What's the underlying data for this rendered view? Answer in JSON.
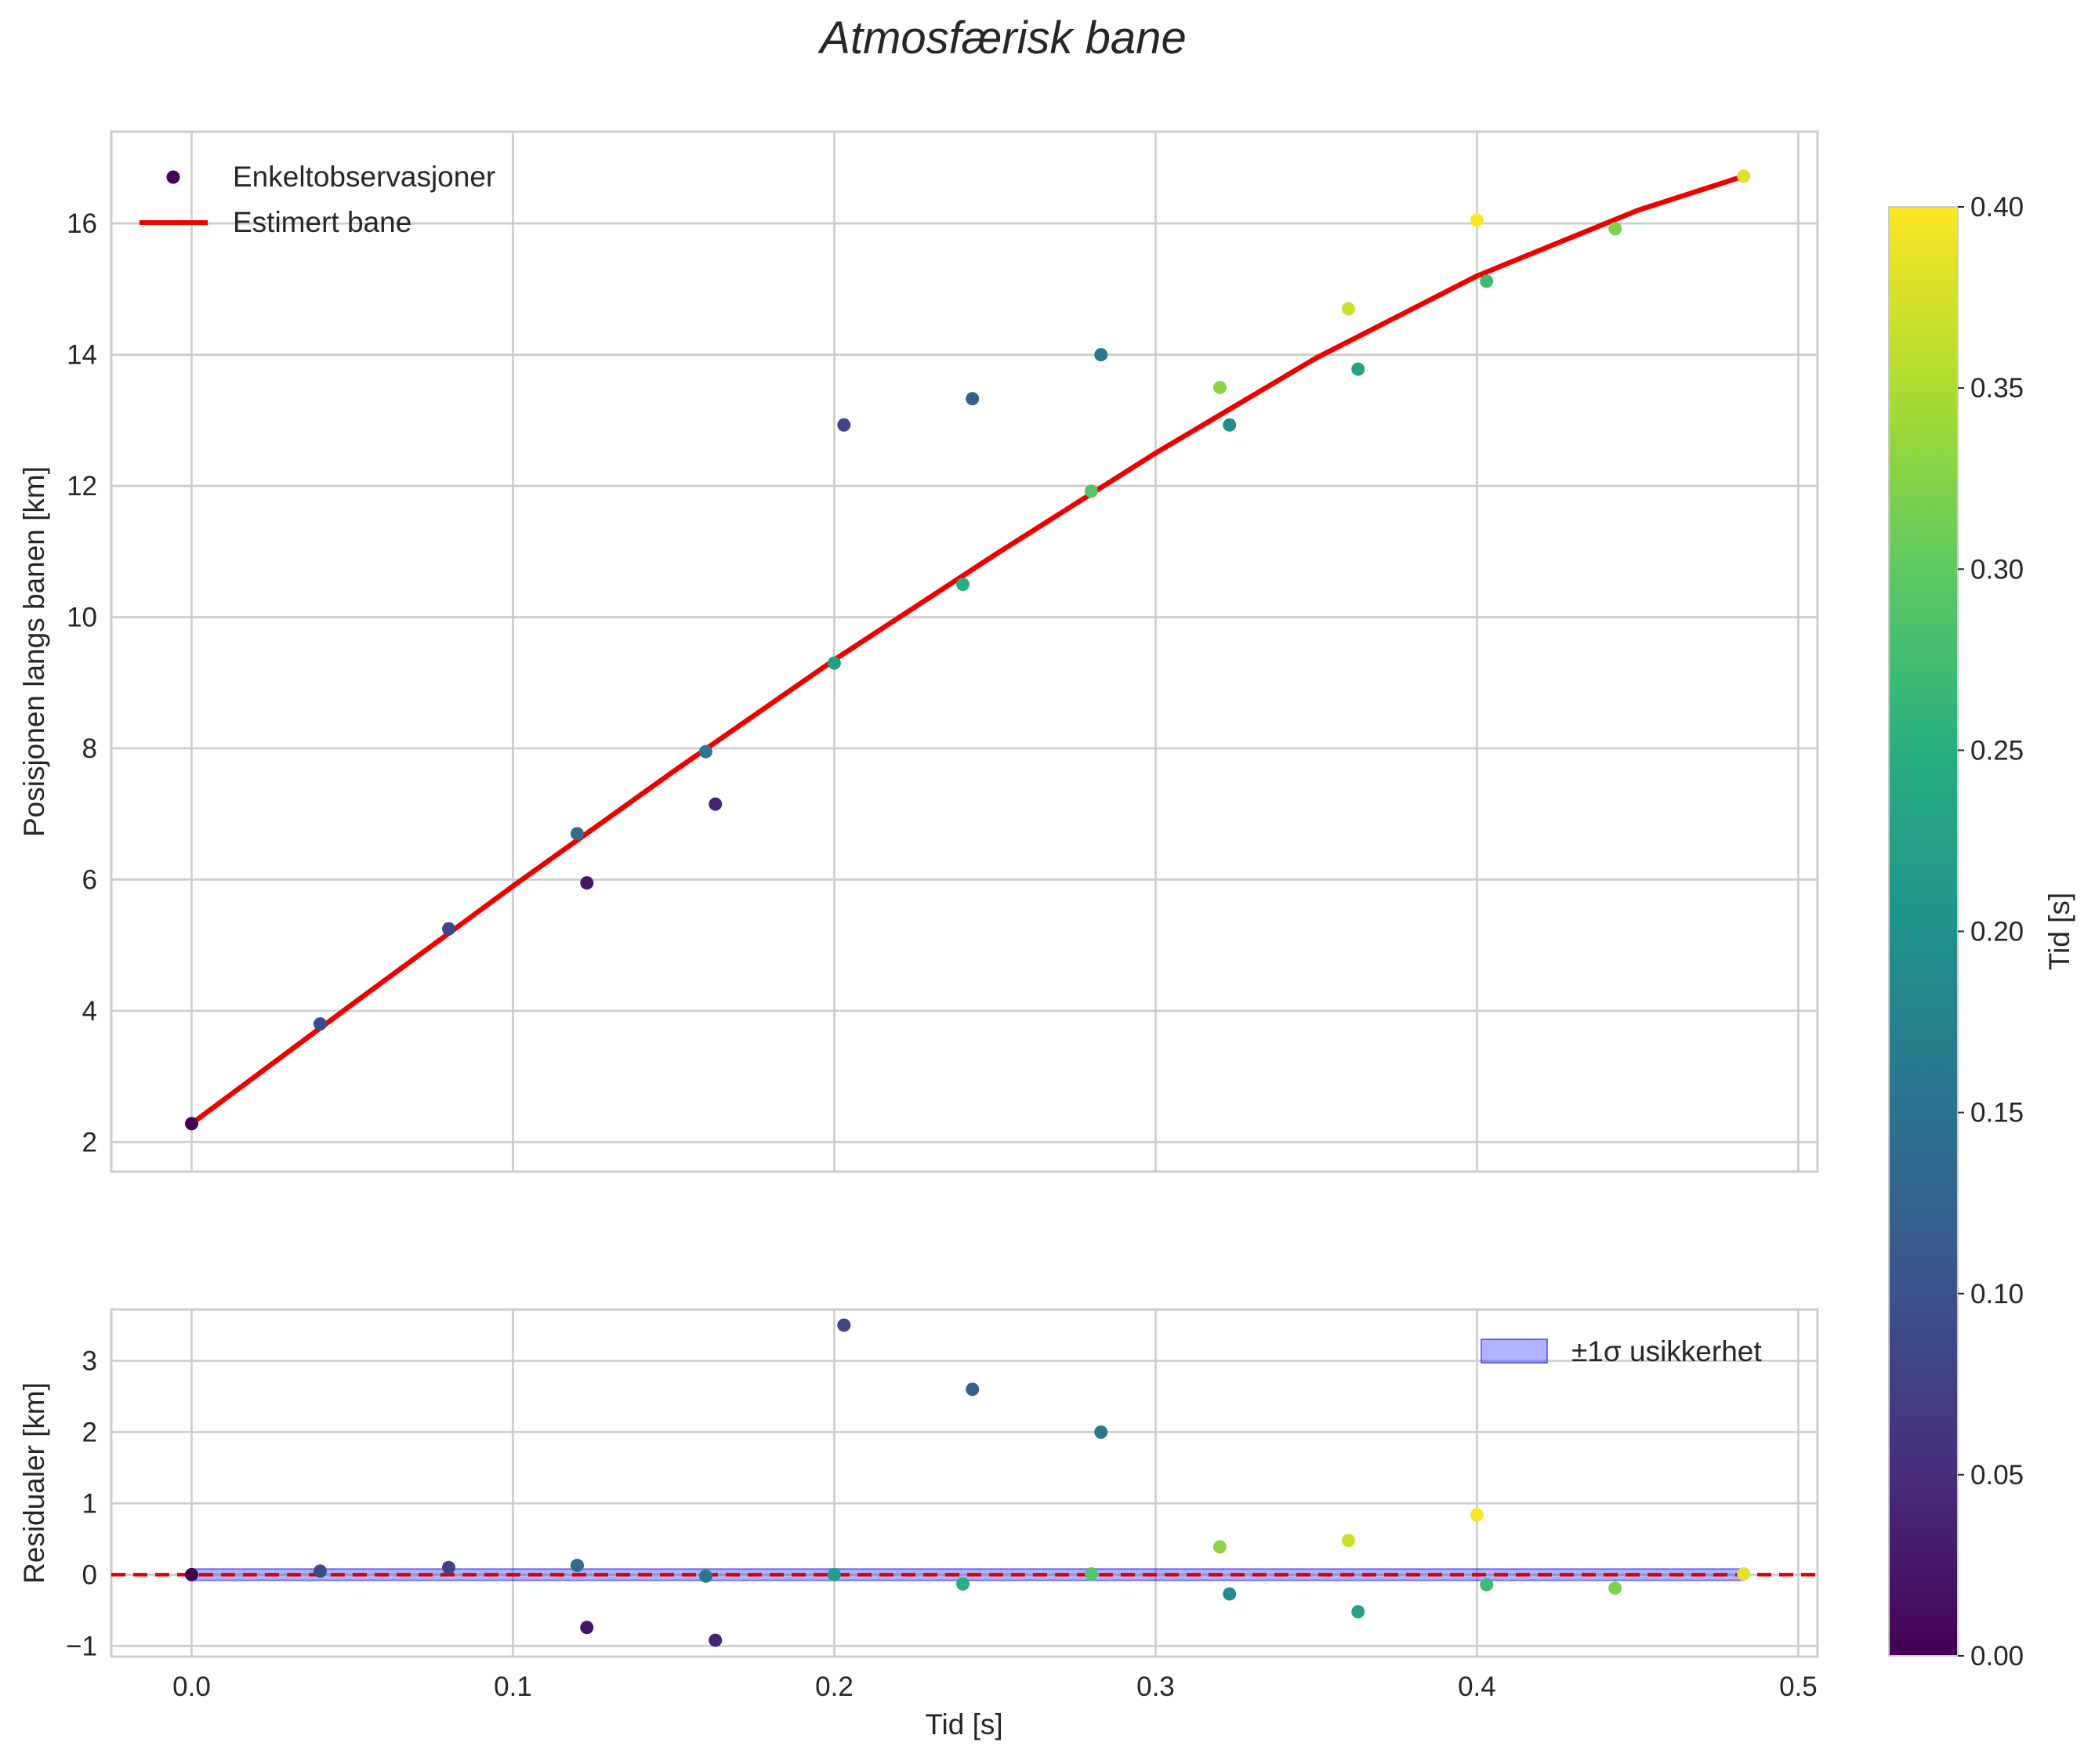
{
  "title": "Atmosfærisk bane",
  "colors": {
    "fit_line": "#ee0000",
    "zero_line": "#dd0000",
    "band": "#0000ff",
    "grid": "#cccccc",
    "text": "#262626"
  },
  "chart_data": [
    {
      "type": "scatter",
      "panel": "top",
      "ylabel": "Posisjonen langs banen [km]",
      "xlim": [
        -0.025,
        0.506
      ],
      "ylim": [
        1.55,
        17.4
      ],
      "xticks": [
        "0.0",
        "0.1",
        "0.2",
        "0.3",
        "0.4",
        "0.5"
      ],
      "yticks": [
        "2",
        "4",
        "6",
        "8",
        "10",
        "12",
        "14",
        "16"
      ],
      "grid": true,
      "legend": {
        "position": "top-left",
        "entries": [
          "Enkeltobservasjoner",
          "Estimert bane"
        ]
      },
      "series": [
        {
          "name": "Enkeltobservasjoner",
          "kind": "scatter",
          "colormap": "viridis",
          "x": [
            0.0,
            0.04,
            0.08,
            0.12,
            0.123,
            0.16,
            0.163,
            0.2,
            0.203,
            0.24,
            0.243,
            0.28,
            0.283,
            0.32,
            0.323,
            0.36,
            0.363,
            0.4,
            0.403,
            0.443,
            0.483
          ],
          "y": [
            2.28,
            3.8,
            5.25,
            6.7,
            5.95,
            7.95,
            7.15,
            9.3,
            12.93,
            10.5,
            13.33,
            11.92,
            14.0,
            13.5,
            12.93,
            14.7,
            13.78,
            16.05,
            15.12,
            15.92,
            16.72
          ],
          "color_value": [
            0.0,
            0.09,
            0.08,
            0.14,
            0.02,
            0.16,
            0.04,
            0.22,
            0.08,
            0.25,
            0.12,
            0.29,
            0.16,
            0.33,
            0.19,
            0.37,
            0.23,
            0.4,
            0.27,
            0.32,
            0.38
          ]
        },
        {
          "name": "Estimert bane",
          "kind": "line",
          "x": [
            0.0,
            0.05,
            0.1,
            0.15,
            0.2,
            0.25,
            0.3,
            0.35,
            0.4,
            0.45,
            0.483
          ],
          "y": [
            2.28,
            4.1,
            5.9,
            7.65,
            9.35,
            10.95,
            12.5,
            13.95,
            15.2,
            16.2,
            16.72
          ]
        }
      ]
    },
    {
      "type": "scatter",
      "panel": "bottom",
      "xlabel": "Tid [s]",
      "ylabel": "Residualer [km]",
      "xlim": [
        -0.025,
        0.506
      ],
      "ylim": [
        -1.15,
        3.72
      ],
      "xticks": [
        "0.0",
        "0.1",
        "0.2",
        "0.3",
        "0.4",
        "0.5"
      ],
      "yticks": [
        "−1",
        "0",
        "1",
        "2",
        "3"
      ],
      "grid": true,
      "legend": {
        "position": "top-right",
        "entries": [
          "±1σ usikkerhet"
        ]
      },
      "band": {
        "x": [
          0.0,
          0.483
        ],
        "lower": -0.08,
        "upper": 0.08
      },
      "reference_line": 0,
      "series": [
        {
          "name": "Residualer",
          "kind": "scatter",
          "colormap": "viridis",
          "x": [
            0.0,
            0.04,
            0.08,
            0.12,
            0.123,
            0.16,
            0.163,
            0.2,
            0.203,
            0.24,
            0.243,
            0.28,
            0.283,
            0.32,
            0.323,
            0.36,
            0.363,
            0.4,
            0.403,
            0.443,
            0.483
          ],
          "y": [
            0.0,
            0.05,
            0.1,
            0.13,
            -0.74,
            -0.02,
            -0.92,
            0.0,
            3.5,
            -0.13,
            2.6,
            0.01,
            2.0,
            0.39,
            -0.27,
            0.48,
            -0.52,
            0.84,
            -0.14,
            -0.19,
            0.01
          ],
          "color_value": [
            0.0,
            0.09,
            0.08,
            0.14,
            0.02,
            0.16,
            0.04,
            0.22,
            0.08,
            0.25,
            0.12,
            0.29,
            0.16,
            0.33,
            0.19,
            0.37,
            0.23,
            0.4,
            0.27,
            0.32,
            0.38
          ]
        }
      ]
    },
    {
      "type": "colorbar",
      "colormap": "viridis",
      "label": "Tid [s]",
      "range": [
        0.0,
        0.4
      ],
      "ticks": [
        "0.00",
        "0.05",
        "0.10",
        "0.15",
        "0.20",
        "0.25",
        "0.30",
        "0.35",
        "0.40"
      ]
    }
  ]
}
